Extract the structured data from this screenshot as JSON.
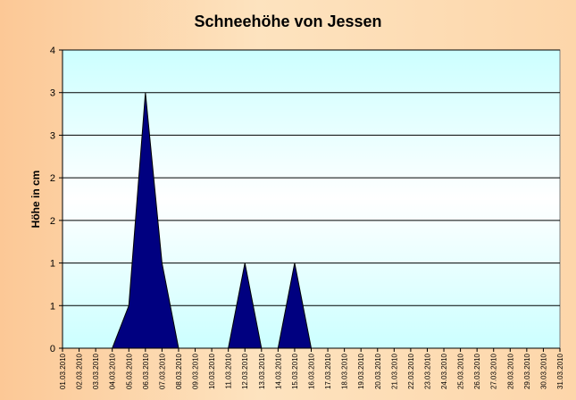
{
  "chart_data": {
    "type": "area",
    "title": "Schneehöhe von Jessen",
    "xlabel": "",
    "ylabel": "Höhe in cm",
    "ylim": [
      0,
      3.5
    ],
    "y_ticks": [
      {
        "value": 0,
        "label": "0"
      },
      {
        "value": 0.5,
        "label": "1"
      },
      {
        "value": 1,
        "label": "1"
      },
      {
        "value": 1.5,
        "label": "2"
      },
      {
        "value": 2,
        "label": "2"
      },
      {
        "value": 2.5,
        "label": "3"
      },
      {
        "value": 3,
        "label": "3"
      },
      {
        "value": 3.5,
        "label": "4"
      }
    ],
    "grid": true,
    "legend": "none",
    "fill_color": "#000080",
    "plot_background_top": "#ffffff",
    "plot_background_bottom": "#ccffff",
    "categories": [
      "01.03.2010",
      "02.03.2010",
      "03.03.2010",
      "04.03.2010",
      "05.03.2010",
      "06.03.2010",
      "07.03.2010",
      "08.03.2010",
      "09.03.2010",
      "10.03.2010",
      "11.03.2010",
      "12.03.2010",
      "13.03.2010",
      "14.03.2010",
      "15.03.2010",
      "16.03.2010",
      "17.03.2010",
      "18.03.2010",
      "19.03.2010",
      "20.03.2010",
      "21.03.2010",
      "22.03.2010",
      "23.03.2010",
      "24.03.2010",
      "25.03.2010",
      "26.03.2010",
      "27.03.2010",
      "28.03.2010",
      "29.03.2010",
      "30.03.2010",
      "31.03.2010"
    ],
    "values": [
      0,
      0,
      0,
      0,
      0.5,
      3,
      1,
      0,
      0,
      0,
      0,
      1,
      0,
      0,
      1,
      0,
      0,
      0,
      0,
      0,
      0,
      0,
      0,
      0,
      0,
      0,
      0,
      0,
      0,
      0,
      0
    ]
  }
}
